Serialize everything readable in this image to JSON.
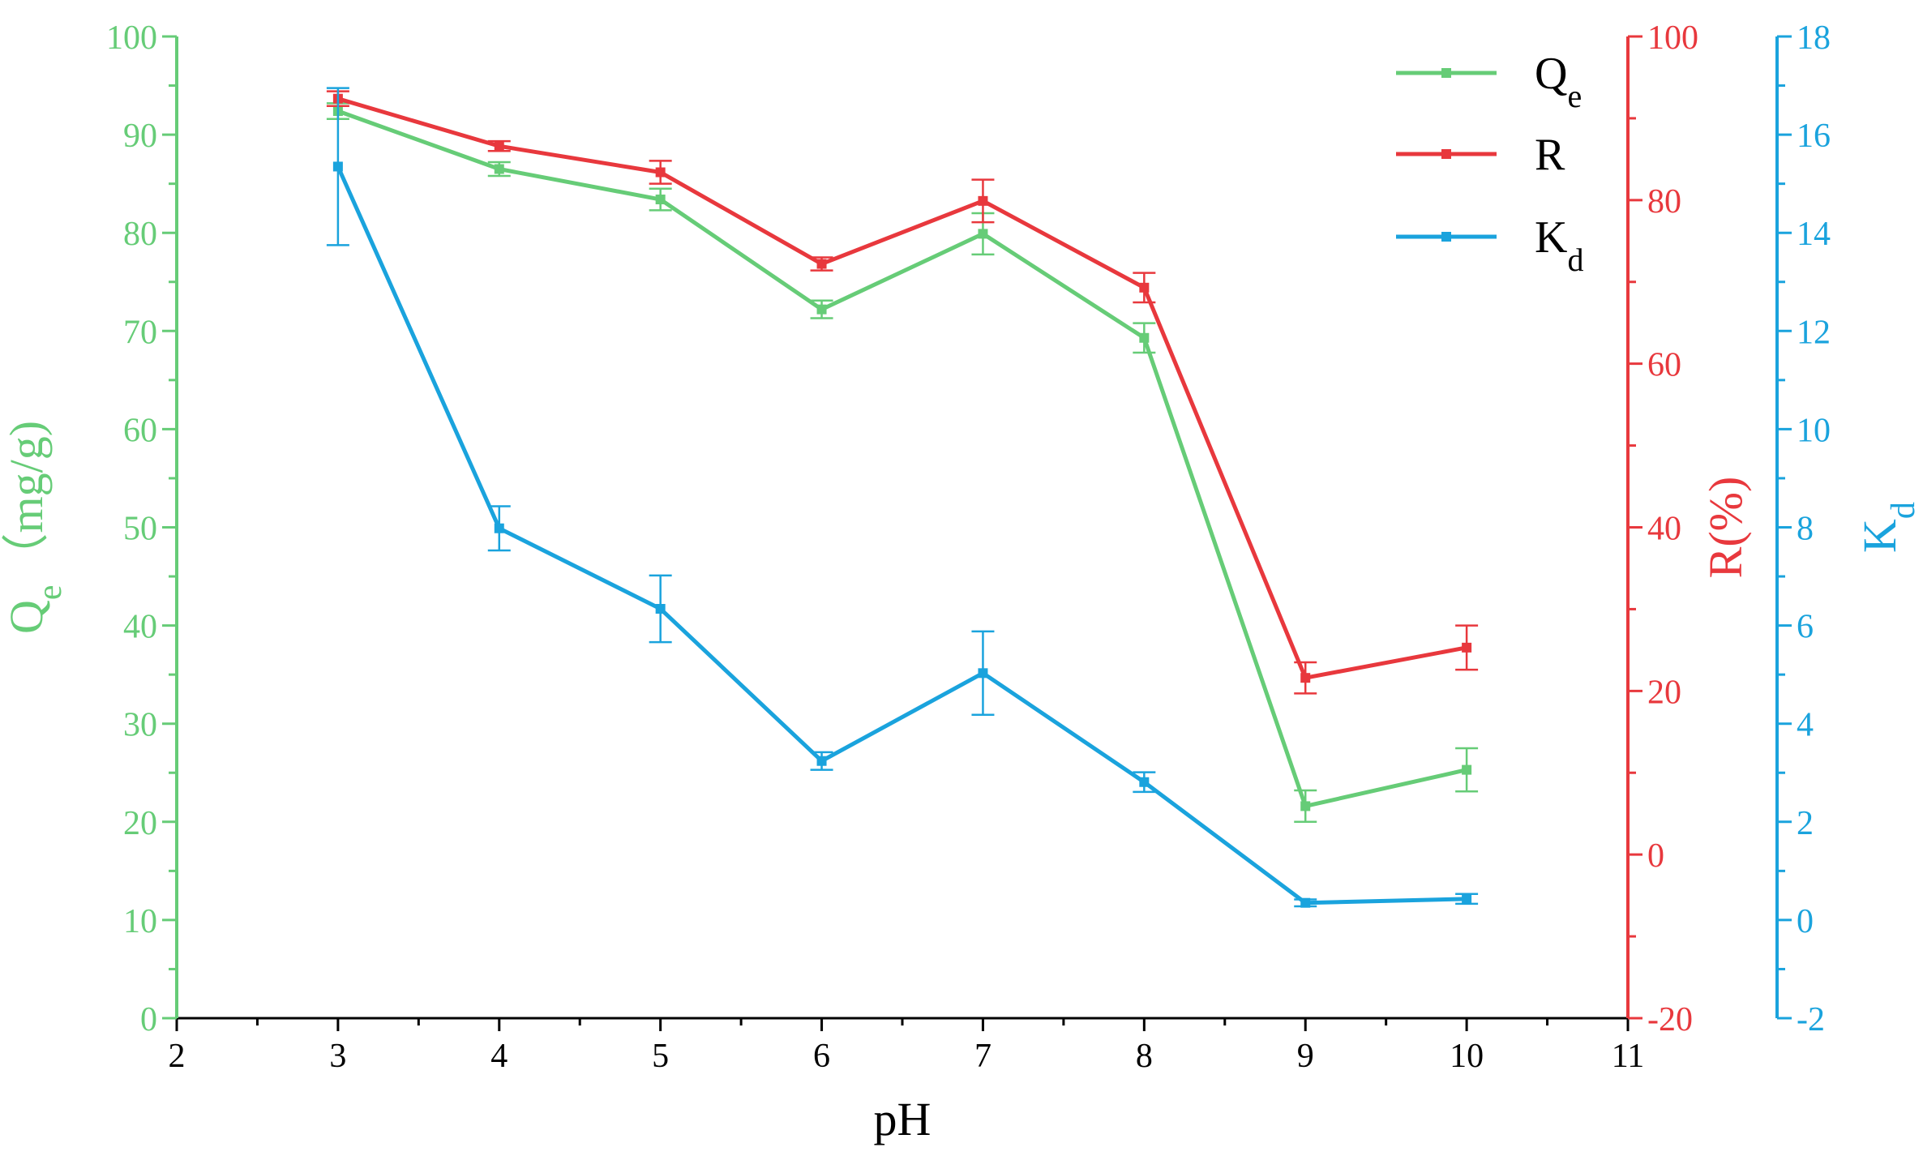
{
  "chart_data": {
    "type": "line",
    "x": [
      3,
      4,
      5,
      6,
      7,
      8,
      9,
      10
    ],
    "xlabel": "pH",
    "xlim": [
      2,
      11
    ],
    "xticks": [
      2,
      3,
      4,
      5,
      6,
      7,
      8,
      9,
      10,
      11
    ],
    "grid": false,
    "legend_position": "top-right",
    "axes": [
      {
        "id": "qe",
        "side": "left",
        "label_main": "Q",
        "label_sub": "e",
        "label_suffix": "（mg/g)",
        "ylim": [
          0,
          100
        ],
        "ticks": [
          0,
          10,
          20,
          30,
          40,
          50,
          60,
          70,
          80,
          90,
          100
        ],
        "color": "#66cc77"
      },
      {
        "id": "r",
        "side": "right",
        "label_main": "R(%)",
        "label_sub": "",
        "label_suffix": "",
        "ylim": [
          -20,
          100
        ],
        "ticks": [
          -20,
          0,
          20,
          40,
          60,
          80,
          100
        ],
        "color": "#e8383d"
      },
      {
        "id": "kd",
        "side": "right-outer",
        "label_main": "K",
        "label_sub": "d",
        "label_suffix": "",
        "ylim": [
          -2,
          18
        ],
        "ticks": [
          -2,
          0,
          2,
          4,
          6,
          8,
          10,
          12,
          14,
          16,
          18
        ],
        "color": "#1aa3dd"
      }
    ],
    "series": [
      {
        "name": "Q",
        "name_sub": "e",
        "axis": "qe",
        "color": "#66cc77",
        "values": [
          92.4,
          86.5,
          83.4,
          72.2,
          79.9,
          69.3,
          21.6,
          25.3
        ],
        "errors": [
          0.8,
          0.7,
          1.1,
          0.9,
          2.1,
          1.5,
          1.6,
          2.2
        ]
      },
      {
        "name": "R",
        "name_sub": "",
        "axis": "r",
        "color": "#e8383d",
        "values": [
          92.4,
          86.6,
          83.4,
          72.2,
          79.9,
          69.3,
          21.6,
          25.3
        ],
        "errors": [
          0.9,
          0.6,
          1.4,
          0.8,
          2.6,
          1.8,
          1.9,
          2.7
        ]
      },
      {
        "name": "K",
        "name_sub": "d",
        "axis": "kd",
        "color": "#1aa3dd",
        "values": [
          15.35,
          7.98,
          6.34,
          3.24,
          5.03,
          2.81,
          0.35,
          0.43
        ],
        "errors": [
          1.6,
          0.45,
          0.68,
          0.18,
          0.85,
          0.2,
          0.07,
          0.1
        ]
      }
    ]
  }
}
